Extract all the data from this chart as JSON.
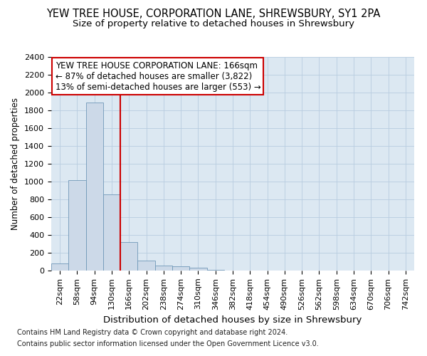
{
  "title1": "YEW TREE HOUSE, CORPORATION LANE, SHREWSBURY, SY1 2PA",
  "title2": "Size of property relative to detached houses in Shrewsbury",
  "xlabel": "Distribution of detached houses by size in Shrewsbury",
  "ylabel": "Number of detached properties",
  "annotation_title": "YEW TREE HOUSE CORPORATION LANE: 166sqm",
  "annotation_line1": "← 87% of detached houses are smaller (3,822)",
  "annotation_line2": "13% of semi-detached houses are larger (553) →",
  "footnote1": "Contains HM Land Registry data © Crown copyright and database right 2024.",
  "footnote2": "Contains public sector information licensed under the Open Government Licence v3.0.",
  "bar_color": "#ccd9e8",
  "bar_edge_color": "#7098b8",
  "red_line_color": "#cc0000",
  "categories": [
    "22sqm",
    "58sqm",
    "94sqm",
    "130sqm",
    "166sqm",
    "202sqm",
    "238sqm",
    "274sqm",
    "310sqm",
    "346sqm",
    "382sqm",
    "418sqm",
    "454sqm",
    "490sqm",
    "526sqm",
    "562sqm",
    "598sqm",
    "634sqm",
    "670sqm",
    "706sqm",
    "742sqm"
  ],
  "values": [
    80,
    1020,
    1890,
    860,
    320,
    115,
    55,
    45,
    30,
    10,
    0,
    0,
    0,
    0,
    0,
    0,
    0,
    0,
    0,
    0,
    0
  ],
  "ylim": [
    0,
    2400
  ],
  "yticks": [
    0,
    200,
    400,
    600,
    800,
    1000,
    1200,
    1400,
    1600,
    1800,
    2000,
    2200,
    2400
  ],
  "background_color": "#ffffff",
  "plot_bg_color": "#dce8f2",
  "grid_color": "#b8cce0",
  "title1_fontsize": 10.5,
  "title2_fontsize": 9.5,
  "xlabel_fontsize": 9.5,
  "ylabel_fontsize": 8.5,
  "tick_fontsize": 8,
  "annotation_fontsize": 8.5,
  "footnote_fontsize": 7
}
